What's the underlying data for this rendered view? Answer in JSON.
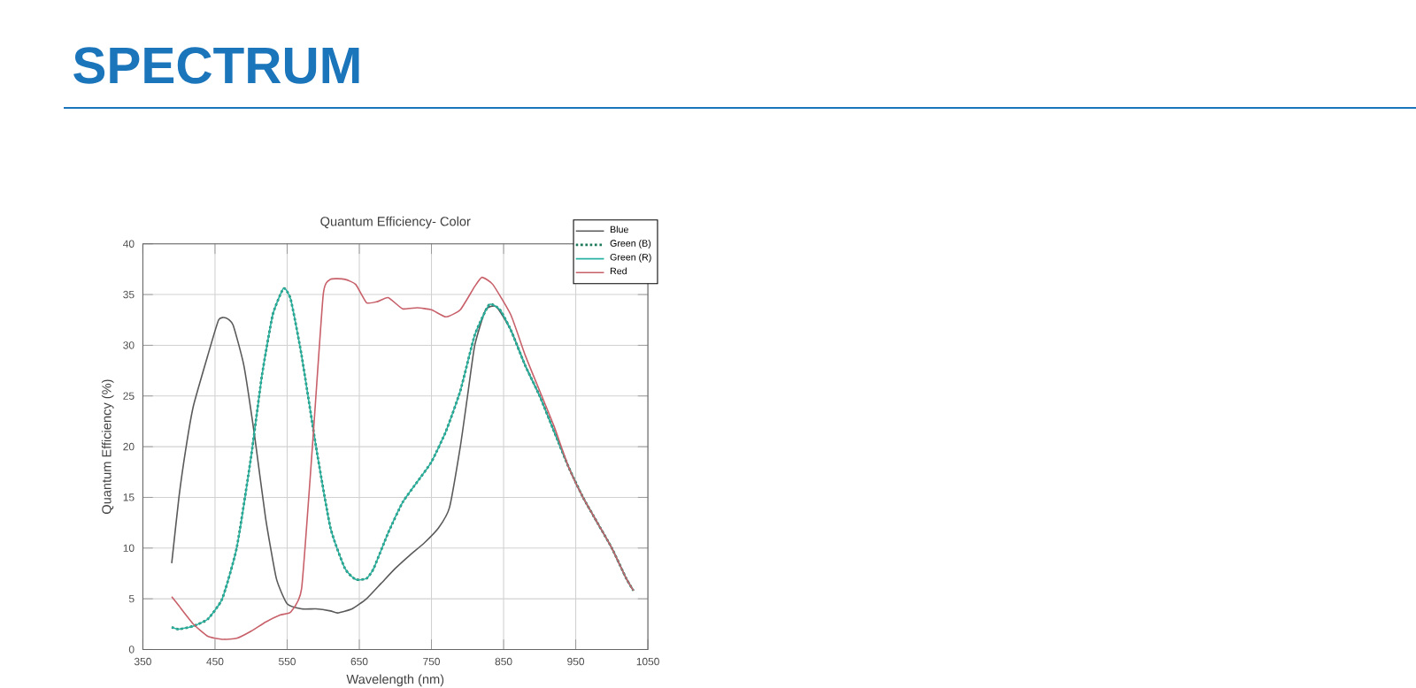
{
  "chart_data": {
    "type": "line",
    "title": "SPECTRUM",
    "subtitle": "Quantum Efficiency- Color",
    "xlabel": "Wavelength (nm)",
    "ylabel": "Quantum Efficiency (%)",
    "xlim": [
      350,
      1050
    ],
    "ylim": [
      0,
      40
    ],
    "xticks": [
      350,
      450,
      550,
      650,
      750,
      850,
      950,
      1050
    ],
    "yticks": [
      0,
      5,
      10,
      15,
      20,
      25,
      30,
      35,
      40
    ],
    "grid": true,
    "legend": "top right",
    "marker": "none",
    "series": [
      {
        "name": "Blue",
        "color": "#5a5a5a",
        "line_style": "solid",
        "x": [
          390,
          400,
          410,
          420,
          440,
          455,
          465,
          475,
          490,
          505,
          520,
          535,
          550,
          570,
          590,
          610,
          620,
          640,
          660,
          680,
          700,
          720,
          740,
          760,
          775,
          790,
          800,
          810,
          825,
          840,
          860,
          880,
          900,
          920,
          940,
          960,
          980,
          1000,
          1020,
          1030
        ],
        "values": [
          8.5,
          15,
          20,
          24,
          29,
          32.5,
          32.7,
          32,
          28,
          21,
          13,
          7,
          4.5,
          4,
          4,
          3.8,
          3.6,
          4,
          5,
          6.5,
          8,
          9.3,
          10.5,
          12,
          14,
          20,
          25,
          30,
          33.5,
          33.8,
          31.5,
          28,
          25,
          21.5,
          18,
          15,
          12.5,
          10,
          7,
          5.8
        ]
      },
      {
        "name": "Green (B)",
        "color": "#1f7a5c",
        "line_style": "dotted",
        "x": [
          390,
          400,
          420,
          440,
          460,
          480,
          500,
          515,
          530,
          545,
          555,
          570,
          590,
          610,
          630,
          645,
          660,
          670,
          690,
          710,
          730,
          750,
          770,
          790,
          810,
          830,
          845,
          860,
          880,
          900,
          920,
          940,
          960,
          980,
          1000,
          1020,
          1030
        ],
        "values": [
          2.2,
          2,
          2.3,
          3,
          5,
          10,
          19,
          27,
          33,
          35.6,
          34.5,
          29,
          20,
          12,
          8,
          6.9,
          7,
          8,
          11.5,
          14.5,
          16.5,
          18.5,
          21.5,
          25.5,
          31,
          34,
          33.5,
          31.5,
          28,
          25,
          21.5,
          18,
          15,
          12.5,
          10,
          7,
          5.8
        ]
      },
      {
        "name": "Green (R)",
        "color": "#2ab3a3",
        "line_style": "solid",
        "x": [
          390,
          400,
          420,
          440,
          460,
          480,
          500,
          515,
          530,
          545,
          555,
          570,
          590,
          610,
          630,
          645,
          660,
          670,
          690,
          710,
          730,
          750,
          770,
          790,
          810,
          830,
          845,
          860,
          880,
          900,
          920,
          940,
          960,
          980,
          1000,
          1020,
          1030
        ],
        "values": [
          2.2,
          2,
          2.3,
          3,
          5,
          10,
          19,
          27,
          33,
          35.6,
          34.5,
          29,
          20,
          12,
          8,
          6.9,
          7,
          8,
          11.5,
          14.5,
          16.5,
          18.5,
          21.5,
          25.5,
          31,
          34,
          33.5,
          31.5,
          28,
          25,
          21.5,
          18,
          15,
          12.5,
          10,
          7,
          5.8
        ]
      },
      {
        "name": "Red",
        "color": "#c8606a",
        "line_style": "solid",
        "x": [
          390,
          400,
          420,
          440,
          460,
          480,
          500,
          520,
          540,
          555,
          570,
          585,
          600,
          610,
          630,
          645,
          660,
          675,
          690,
          710,
          730,
          750,
          770,
          790,
          810,
          820,
          835,
          860,
          880,
          900,
          920,
          940,
          960,
          980,
          1000,
          1020,
          1030
        ],
        "values": [
          5.2,
          4.3,
          2.5,
          1.3,
          1,
          1.1,
          1.8,
          2.7,
          3.4,
          3.7,
          6,
          20,
          35,
          36.5,
          36.5,
          36,
          34.2,
          34.3,
          34.7,
          33.6,
          33.7,
          33.5,
          32.8,
          33.5,
          35.8,
          36.7,
          36,
          33,
          29,
          25.5,
          22,
          18,
          15,
          12.5,
          10,
          7,
          5.8
        ]
      }
    ]
  }
}
